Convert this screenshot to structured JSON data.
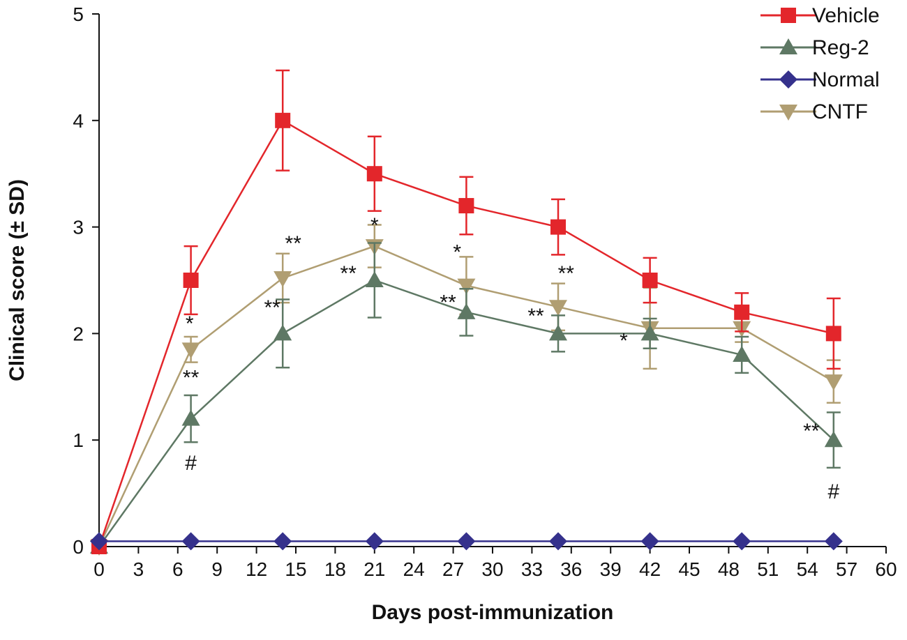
{
  "chart_data": {
    "type": "line",
    "title": "",
    "xlabel": "Days post-immunization",
    "ylabel": "Clinical score (± SD)",
    "xlim": [
      0,
      60
    ],
    "ylim": [
      0,
      5
    ],
    "xticks": [
      0,
      3,
      6,
      9,
      12,
      15,
      18,
      21,
      24,
      27,
      30,
      33,
      36,
      39,
      42,
      45,
      48,
      51,
      54,
      57,
      60
    ],
    "yticks": [
      0,
      1,
      2,
      3,
      4,
      5
    ],
    "legend_position": "top-right",
    "series": [
      {
        "name": "Vehicle",
        "color": "#e3262b",
        "marker": "square",
        "x": [
          0,
          7,
          14,
          21,
          28,
          35,
          42,
          49,
          56
        ],
        "y": [
          0,
          2.5,
          4.0,
          3.5,
          3.2,
          3.0,
          2.5,
          2.2,
          2.0
        ],
        "err": [
          0,
          0.32,
          0.47,
          0.35,
          0.27,
          0.26,
          0.21,
          0.18,
          0.33
        ]
      },
      {
        "name": "Reg-2",
        "color": "#5e7864",
        "marker": "triangle-up",
        "x": [
          0,
          7,
          14,
          21,
          28,
          35,
          42,
          49,
          56
        ],
        "y": [
          0,
          1.2,
          2.0,
          2.5,
          2.2,
          2.0,
          2.0,
          1.8,
          1.0
        ],
        "err": [
          0,
          0.22,
          0.32,
          0.35,
          0.22,
          0.17,
          0.14,
          0.17,
          0.26
        ]
      },
      {
        "name": "Normal",
        "color": "#35318c",
        "marker": "diamond",
        "x": [
          0,
          7,
          14,
          21,
          28,
          35,
          42,
          49,
          56
        ],
        "y": [
          0.05,
          0.05,
          0.05,
          0.05,
          0.05,
          0.05,
          0.05,
          0.05,
          0.05
        ],
        "err": [
          0,
          0,
          0,
          0,
          0,
          0,
          0,
          0,
          0
        ]
      },
      {
        "name": "CNTF",
        "color": "#b09e72",
        "marker": "triangle-down",
        "x": [
          0,
          7,
          14,
          21,
          28,
          35,
          42,
          49,
          56
        ],
        "y": [
          0,
          1.85,
          2.52,
          2.82,
          2.45,
          2.25,
          2.05,
          2.05,
          1.55
        ],
        "err": [
          0,
          0.12,
          0.23,
          0.2,
          0.27,
          0.22,
          0.38,
          0.13,
          0.2
        ]
      }
    ],
    "annotations": [
      {
        "text": "*",
        "x": 6.9,
        "y": 2.03
      },
      {
        "text": "**",
        "x": 7.0,
        "y": 1.52
      },
      {
        "text": "#",
        "x": 7.0,
        "y": 0.72
      },
      {
        "text": "**",
        "x": 13.2,
        "y": 2.18
      },
      {
        "text": "**",
        "x": 14.8,
        "y": 2.78
      },
      {
        "text": "*",
        "x": 21.0,
        "y": 2.95
      },
      {
        "text": "**",
        "x": 19.0,
        "y": 2.5
      },
      {
        "text": "*",
        "x": 27.3,
        "y": 2.7
      },
      {
        "text": "**",
        "x": 26.6,
        "y": 2.23
      },
      {
        "text": "**",
        "x": 35.6,
        "y": 2.5
      },
      {
        "text": "**",
        "x": 33.3,
        "y": 2.1
      },
      {
        "text": "*",
        "x": 40.0,
        "y": 1.87
      },
      {
        "text": "**",
        "x": 54.3,
        "y": 1.02
      },
      {
        "text": "#",
        "x": 56.0,
        "y": 0.45
      }
    ]
  }
}
